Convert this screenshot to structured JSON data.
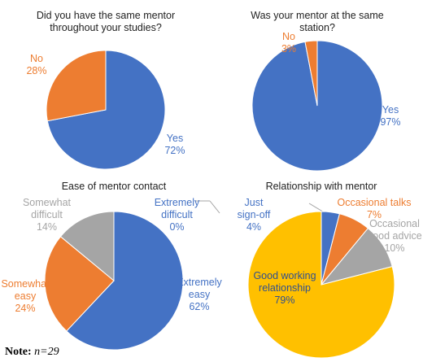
{
  "chart_data": [
    {
      "type": "pie",
      "title": "Did you have the same mentor throughout your studies?",
      "categories": [
        "Yes",
        "No"
      ],
      "values": [
        72,
        28
      ],
      "value_labels": [
        "72%",
        "28%"
      ],
      "colors": [
        "#4472c4",
        "#ed7d31"
      ]
    },
    {
      "type": "pie",
      "title": "Was your mentor at the same station?",
      "categories": [
        "Yes",
        "No"
      ],
      "values": [
        97,
        3
      ],
      "value_labels": [
        "97%",
        "3%"
      ],
      "colors": [
        "#4472c4",
        "#ed7d31"
      ]
    },
    {
      "type": "pie",
      "title": "Ease of mentor contact",
      "categories": [
        "Extremely easy",
        "Somewhat easy",
        "Somewhat difficult",
        "Extremely difficult"
      ],
      "values": [
        62,
        24,
        14,
        0
      ],
      "value_labels": [
        "62%",
        "24%",
        "14%",
        "0%"
      ],
      "colors": [
        "#4472c4",
        "#ed7d31",
        "#a5a5a5",
        "#4472c4"
      ]
    },
    {
      "type": "pie",
      "title": "Relationship with mentor",
      "categories": [
        "Just sign-off",
        "Occasional talks",
        "Occasional good advice",
        "Good working relationship"
      ],
      "values": [
        4,
        7,
        10,
        79
      ],
      "value_labels": [
        "4%",
        "7%",
        "10%",
        "79%"
      ],
      "colors": [
        "#4472c4",
        "#ed7d31",
        "#a5a5a5",
        "#ffc000"
      ]
    }
  ],
  "note_label": "Note:",
  "note": "n=29"
}
